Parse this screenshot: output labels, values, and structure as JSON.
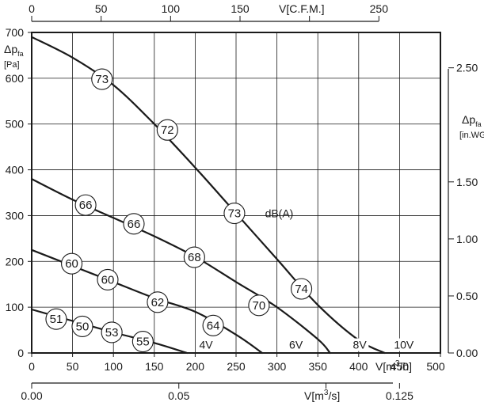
{
  "chart_data": {
    "type": "line",
    "x_primary": {
      "label": "V[m3/h]",
      "unit_main": "V[m",
      "unit_sup": "3",
      "unit_end": "/h]",
      "range": [
        0,
        500
      ],
      "ticks": [
        0,
        50,
        100,
        150,
        200,
        250,
        300,
        350,
        400,
        450,
        500
      ],
      "tick_labels": [
        "0",
        "50",
        "100",
        "150",
        "200",
        "250",
        "300",
        "350",
        "400",
        "450",
        "500"
      ]
    },
    "x_top": {
      "label": "V[C.F.M.]",
      "range": [
        0,
        294.3
      ],
      "ticks": [
        0,
        50,
        100,
        150,
        200,
        250
      ],
      "tick_labels": [
        "0",
        "50",
        "100",
        "150",
        "",
        "250"
      ]
    },
    "x_bottom": {
      "label": "V[m3/s]",
      "unit_main": "V[m",
      "unit_sup": "3",
      "unit_end": "/s]",
      "range": [
        0,
        0.1389
      ],
      "ticks": [
        0,
        0.05,
        0.1,
        0.125
      ],
      "tick_labels": [
        "0.00",
        "0.05",
        "",
        "0.125"
      ]
    },
    "y_left": {
      "label_main": "Δp",
      "label_sub": "fa",
      "unit": "[Pa]",
      "range": [
        0,
        700
      ],
      "ticks": [
        0,
        100,
        200,
        300,
        400,
        500,
        600,
        700
      ],
      "tick_labels": [
        "0",
        "100",
        "200",
        "300",
        "400",
        "500",
        "600",
        "700"
      ]
    },
    "y_right": {
      "label_main": "Δp",
      "label_sub": "fa",
      "unit": "[in.WG]",
      "range": [
        0,
        2.81
      ],
      "ticks": [
        0,
        0.5,
        1.0,
        1.5,
        2.5
      ],
      "tick_labels": [
        "0.00",
        "0.50",
        "1.00",
        "1.50",
        "2.50"
      ]
    },
    "grid": true,
    "series": [
      {
        "name": "10V",
        "x": [
          0,
          50,
          100,
          150,
          200,
          250,
          300,
          350,
          400,
          432
        ],
        "y": [
          690,
          645,
          585,
          500,
          405,
          305,
          205,
          105,
          28,
          0
        ],
        "noise_labels": [
          {
            "x": 86,
            "y": 598,
            "text": "73"
          },
          {
            "x": 166,
            "y": 487,
            "text": "72"
          },
          {
            "x": 248,
            "y": 305,
            "text": "73"
          },
          {
            "x": 330,
            "y": 140,
            "text": "74"
          }
        ]
      },
      {
        "name": "8V",
        "x": [
          0,
          50,
          100,
          150,
          200,
          250,
          300,
          350,
          365
        ],
        "y": [
          380,
          335,
          295,
          255,
          210,
          155,
          100,
          30,
          0
        ],
        "noise_labels": [
          {
            "x": 66,
            "y": 323,
            "text": "66"
          },
          {
            "x": 125,
            "y": 282,
            "text": "66"
          },
          {
            "x": 199,
            "y": 209,
            "text": "68"
          },
          {
            "x": 278,
            "y": 104,
            "text": "70"
          }
        ]
      },
      {
        "name": "6V",
        "x": [
          0,
          50,
          100,
          150,
          200,
          250,
          282
        ],
        "y": [
          225,
          190,
          155,
          120,
          90,
          40,
          0
        ],
        "noise_labels": [
          {
            "x": 49,
            "y": 195,
            "text": "60"
          },
          {
            "x": 93,
            "y": 160,
            "text": "60"
          },
          {
            "x": 154,
            "y": 111,
            "text": "62"
          },
          {
            "x": 222,
            "y": 60,
            "text": "64"
          }
        ]
      },
      {
        "name": "4V",
        "x": [
          0,
          50,
          100,
          150,
          190
        ],
        "y": [
          95,
          70,
          45,
          22,
          0
        ],
        "noise_labels": [
          {
            "x": 30,
            "y": 74,
            "text": "51"
          },
          {
            "x": 62,
            "y": 58,
            "text": "50"
          },
          {
            "x": 98,
            "y": 45,
            "text": "53"
          },
          {
            "x": 136,
            "y": 25,
            "text": "55"
          }
        ]
      }
    ],
    "voltage_labels": [
      {
        "text": "4V",
        "x": 190,
        "y": 18
      },
      {
        "text": "6V",
        "x": 300,
        "y": 18
      },
      {
        "text": "8V",
        "x": 378,
        "y": 18
      },
      {
        "text": "10V",
        "x": 432,
        "y": 18
      }
    ],
    "unit_annotation": {
      "text": "dB(A)",
      "x": 268,
      "y": 305
    }
  }
}
